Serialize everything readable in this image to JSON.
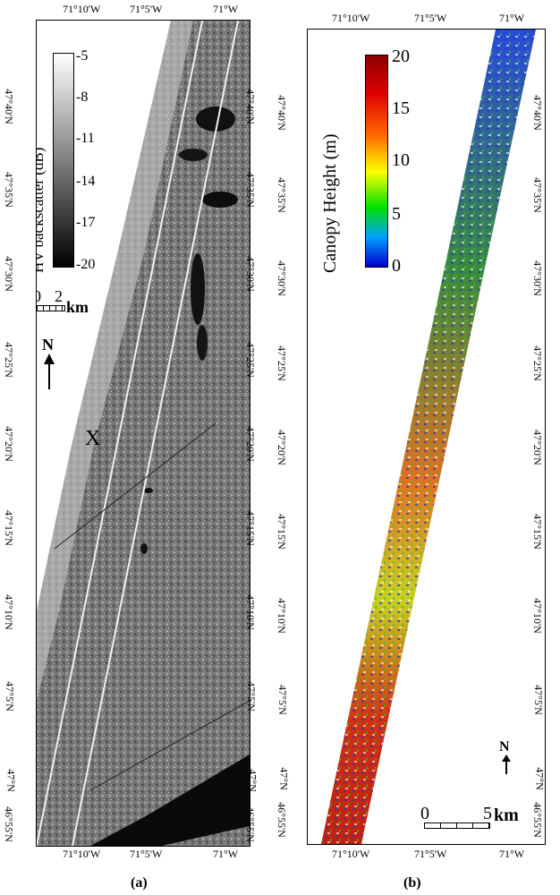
{
  "panel_a": {
    "caption": "(a)",
    "top_lon_ticks": [
      "71°10'W",
      "71°5'W",
      "71°W"
    ],
    "bottom_lon_ticks": [
      "71°10'W",
      "71°5'W",
      "71°W"
    ],
    "left_lat_ticks": [
      "47°40'N",
      "47°35'N",
      "47°30'N",
      "47°25'N",
      "47°20'N",
      "47°15'N",
      "47°10'N",
      "47°5'N",
      "47°N",
      "46°55'N"
    ],
    "right_lat_ticks": [
      "47°40'N",
      "47°35'N",
      "47°30'N",
      "47°25'N",
      "47°20'N",
      "47°15'N",
      "47°10'N",
      "47°5'N",
      "47°N",
      "46°55'N"
    ],
    "colorbar": {
      "label": "HV backscatter (dB)",
      "ticks": [
        "-5",
        "-8",
        "-11",
        "-14",
        "-17",
        "-20"
      ],
      "colors": [
        "#ffffff",
        "#000000"
      ]
    },
    "scale_bar": {
      "label_left": "0",
      "label_right": "2",
      "unit": "km"
    },
    "north_arrow": "N",
    "marker": "X"
  },
  "panel_b": {
    "caption": "(b)",
    "top_lon_ticks": [
      "71°10'W",
      "71°5'W",
      "71°W"
    ],
    "bottom_lon_ticks": [
      "71°10'W",
      "71°5'W",
      "71°W"
    ],
    "left_lat_ticks": [
      "47°40'N",
      "47°35'N",
      "47°30'N",
      "47°25'N",
      "47°20'N",
      "47°15'N",
      "47°10'N",
      "47°5'N",
      "47°N",
      "46°55'N"
    ],
    "right_lat_ticks": [
      "47°40'N",
      "47°35'N",
      "47°30'N",
      "47°25'N",
      "47°20'N",
      "47°15'N",
      "47°10'N",
      "47°5'N",
      "47°N",
      "46°55'N"
    ],
    "colorbar": {
      "label": "Canopy Height (m)",
      "ticks": [
        "20",
        "15",
        "10",
        "5",
        "0"
      ],
      "colors": [
        "#8b0000",
        "#ff0000",
        "#ff8c00",
        "#ffff00",
        "#00ff00",
        "#00bfff",
        "#0000cd"
      ]
    },
    "scale_bar": {
      "label_left": "0",
      "label_right": "5",
      "unit": "km"
    },
    "north_arrow": "N"
  }
}
